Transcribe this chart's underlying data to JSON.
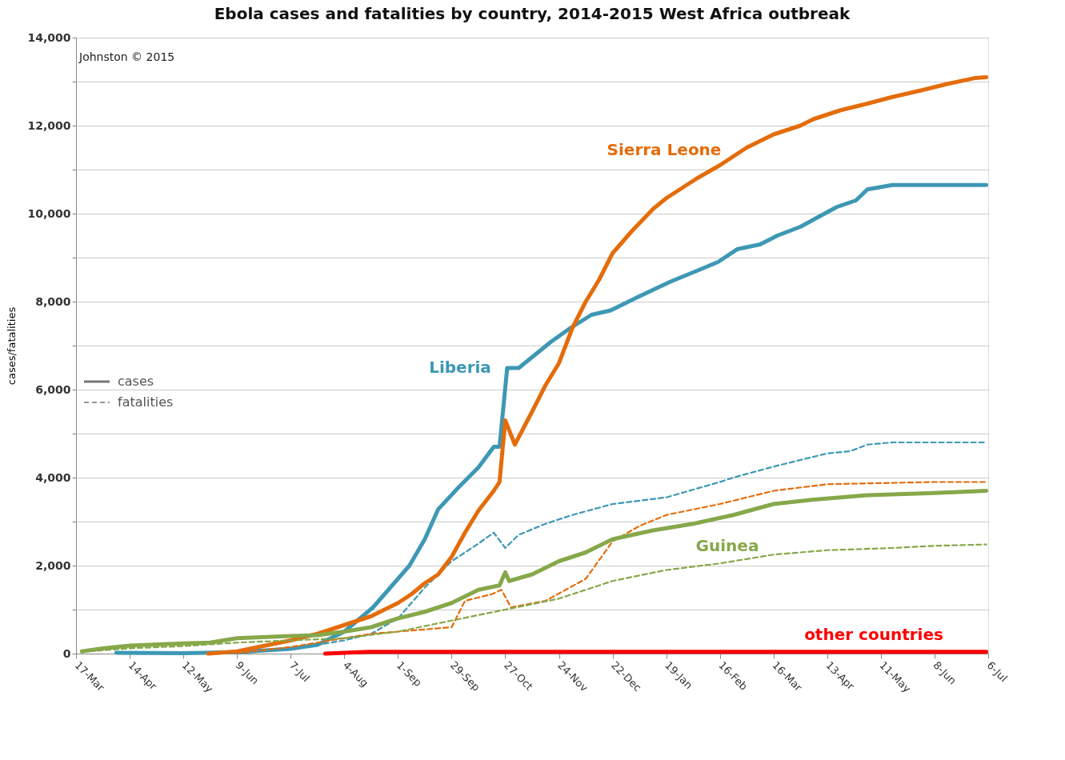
{
  "chart_data": {
    "type": "line",
    "title": "Ebola cases and fatalities by country, 2014-2015 West Africa outbreak",
    "ylabel": "cases/fatalities",
    "xlim": [
      "2014-03-17",
      "2015-07-06"
    ],
    "xticks": [
      {
        "value": "2014-03-17",
        "label": "17-Mar"
      },
      {
        "value": "2014-04-14",
        "label": "14-Apr"
      },
      {
        "value": "2014-05-12",
        "label": "12-May"
      },
      {
        "value": "2014-06-09",
        "label": "9-Jun"
      },
      {
        "value": "2014-07-07",
        "label": "7-Jul"
      },
      {
        "value": "2014-08-04",
        "label": "4-Aug"
      },
      {
        "value": "2014-09-01",
        "label": "1-Sep"
      },
      {
        "value": "2014-09-29",
        "label": "29-Sep"
      },
      {
        "value": "2014-10-27",
        "label": "27-Oct"
      },
      {
        "value": "2014-11-24",
        "label": "24-Nov"
      },
      {
        "value": "2014-12-22",
        "label": "22-Dec"
      },
      {
        "value": "2015-01-19",
        "label": "19-Jan"
      },
      {
        "value": "2015-02-16",
        "label": "16-Feb"
      },
      {
        "value": "2015-03-16",
        "label": "16-Mar"
      },
      {
        "value": "2015-04-13",
        "label": "13-Apr"
      },
      {
        "value": "2015-05-11",
        "label": "11-May"
      },
      {
        "value": "2015-06-08",
        "label": "8-Jun"
      },
      {
        "value": "2015-07-06",
        "label": "6-Jul"
      }
    ],
    "ylim": [
      0,
      14000
    ],
    "yticks": [
      0,
      {
        "value": 1000,
        "label": null
      },
      {
        "value": 2000,
        "label": "2,000"
      },
      {
        "value": 3000,
        "label": null
      },
      {
        "value": 4000,
        "label": "4,000"
      },
      {
        "value": 5000,
        "label": null
      },
      {
        "value": 6000,
        "label": "6,000"
      },
      {
        "value": 7000,
        "label": null
      },
      {
        "value": 8000,
        "label": "8,000"
      },
      {
        "value": 9000,
        "label": null
      },
      {
        "value": 10000,
        "label": "10,000"
      },
      {
        "value": 11000,
        "label": null
      },
      {
        "value": 12000,
        "label": "12,000"
      },
      {
        "value": 13000,
        "label": null
      },
      {
        "value": 14000,
        "label": "14,000"
      }
    ],
    "grid": "y",
    "annotations": [
      "Johnston © 2015",
      "cases",
      "fatalities"
    ],
    "series": [
      {
        "name": "Liberia",
        "color": "#3d98b4",
        "line_style": "solid",
        "x": [
          "2014-04-07",
          "2014-05-12",
          "2014-06-09",
          "2014-07-07",
          "2014-07-21",
          "2014-08-04",
          "2014-08-19",
          "2014-09-07",
          "2014-09-15",
          "2014-09-22",
          "2014-10-02",
          "2014-10-13",
          "2014-10-21",
          "2014-10-24",
          "2014-10-28",
          "2014-11-03",
          "2014-11-20",
          "2014-11-30",
          "2014-12-11",
          "2014-12-21",
          "2015-01-04",
          "2015-01-21",
          "2015-02-04",
          "2015-02-15",
          "2015-02-25",
          "2015-03-09",
          "2015-03-18",
          "2015-03-30",
          "2015-04-18",
          "2015-04-28",
          "2015-05-04",
          "2015-05-17",
          "2015-07-05"
        ],
        "values": [
          20,
          10,
          30,
          110,
          200,
          500,
          1050,
          2000,
          2600,
          3280,
          3750,
          4230,
          4700,
          4700,
          6490,
          6490,
          7090,
          7400,
          7700,
          7800,
          8100,
          8450,
          8700,
          8900,
          9190,
          9300,
          9500,
          9700,
          10150,
          10300,
          10550,
          10650,
          10650
        ]
      },
      {
        "color": "#3d98b4",
        "line_style": "dashed",
        "x": [
          "2014-04-07",
          "2014-06-09",
          "2014-07-07",
          "2014-08-04",
          "2014-08-18",
          "2014-09-01",
          "2014-09-15",
          "2014-09-29",
          "2014-10-13",
          "2014-10-21",
          "2014-10-27",
          "2014-11-03",
          "2014-11-17",
          "2014-12-01",
          "2014-12-22",
          "2015-01-19",
          "2015-02-16",
          "2015-02-23",
          "2015-03-16",
          "2015-04-13",
          "2015-04-25",
          "2015-05-04",
          "2015-05-17",
          "2015-07-05"
        ],
        "values": [
          10,
          20,
          100,
          300,
          450,
          800,
          1500,
          2100,
          2500,
          2750,
          2400,
          2700,
          2950,
          3150,
          3400,
          3550,
          3900,
          4000,
          4250,
          4550,
          4600,
          4750,
          4800,
          4800
        ]
      },
      {
        "name": "Sierra Leone",
        "color": "#e46c0a",
        "line_style": "solid",
        "x": [
          "2014-05-25",
          "2014-06-09",
          "2014-07-07",
          "2014-07-21",
          "2014-08-04",
          "2014-08-18",
          "2014-09-01",
          "2014-09-08",
          "2014-09-15",
          "2014-09-22",
          "2014-09-29",
          "2014-10-06",
          "2014-10-13",
          "2014-10-21",
          "2014-10-24",
          "2014-10-27",
          "2014-11-01",
          "2014-11-10",
          "2014-11-17",
          "2014-11-24",
          "2014-12-01",
          "2014-12-08",
          "2014-12-15",
          "2014-12-22",
          "2015-01-01",
          "2015-01-12",
          "2015-01-19",
          "2015-02-04",
          "2015-02-16",
          "2015-03-02",
          "2015-03-16",
          "2015-03-30",
          "2015-04-06",
          "2015-04-20",
          "2015-05-04",
          "2015-05-17",
          "2015-06-01",
          "2015-06-15",
          "2015-06-29",
          "2015-07-05"
        ],
        "values": [
          0,
          50,
          300,
          450,
          650,
          850,
          1150,
          1350,
          1600,
          1800,
          2200,
          2750,
          3250,
          3700,
          3900,
          5300,
          4750,
          5500,
          6100,
          6600,
          7400,
          8000,
          8500,
          9100,
          9600,
          10100,
          10350,
          10800,
          11100,
          11500,
          11800,
          12000,
          12150,
          12350,
          12500,
          12650,
          12800,
          12950,
          13080,
          13100
        ]
      },
      {
        "color": "#e46c0a",
        "line_style": "dashed",
        "x": [
          "2014-06-09",
          "2014-07-07",
          "2014-08-04",
          "2014-08-18",
          "2014-09-01",
          "2014-09-29",
          "2014-10-06",
          "2014-10-20",
          "2014-10-25",
          "2014-10-30",
          "2014-11-17",
          "2014-12-08",
          "2014-12-22",
          "2015-01-05",
          "2015-01-19",
          "2015-02-16",
          "2015-03-16",
          "2015-04-13",
          "2015-05-17",
          "2015-06-08",
          "2015-07-05"
        ],
        "values": [
          10,
          150,
          350,
          450,
          500,
          600,
          1200,
          1350,
          1450,
          1050,
          1200,
          1700,
          2550,
          2900,
          3150,
          3400,
          3700,
          3850,
          3880,
          3900,
          3900
        ]
      },
      {
        "name": "Guinea",
        "color": "#86a84a",
        "line_style": "solid",
        "x": [
          "2014-03-20",
          "2014-03-31",
          "2014-04-14",
          "2014-05-12",
          "2014-05-26",
          "2014-06-09",
          "2014-07-07",
          "2014-07-21",
          "2014-08-04",
          "2014-08-18",
          "2014-09-01",
          "2014-09-15",
          "2014-09-29",
          "2014-10-13",
          "2014-10-24",
          "2014-10-27",
          "2014-10-29",
          "2014-11-10",
          "2014-11-24",
          "2014-12-08",
          "2014-12-22",
          "2015-01-12",
          "2015-02-02",
          "2015-02-23",
          "2015-03-16",
          "2015-04-06",
          "2015-05-04",
          "2015-06-08",
          "2015-07-05"
        ],
        "values": [
          50,
          120,
          180,
          230,
          250,
          350,
          400,
          420,
          500,
          600,
          800,
          950,
          1150,
          1450,
          1550,
          1850,
          1650,
          1800,
          2100,
          2300,
          2600,
          2800,
          2950,
          3150,
          3400,
          3500,
          3600,
          3650,
          3700
        ]
      },
      {
        "color": "#86a84a",
        "line_style": "dashed",
        "x": [
          "2014-03-20",
          "2014-04-14",
          "2014-05-12",
          "2014-06-09",
          "2014-07-07",
          "2014-08-04",
          "2014-09-01",
          "2014-09-29",
          "2014-10-27",
          "2014-11-24",
          "2014-12-22",
          "2015-01-19",
          "2015-02-16",
          "2015-03-16",
          "2015-04-13",
          "2015-05-17",
          "2015-06-08",
          "2015-07-05"
        ],
        "values": [
          40,
          120,
          170,
          250,
          300,
          350,
          500,
          750,
          1000,
          1250,
          1650,
          1900,
          2050,
          2250,
          2350,
          2400,
          2450,
          2480
        ]
      },
      {
        "name": "other countries",
        "color": "#ff0000",
        "line_style": "solid",
        "x": [
          "2014-07-25",
          "2014-08-17",
          "2015-07-05"
        ],
        "values": [
          0,
          40,
          40
        ]
      }
    ]
  }
}
